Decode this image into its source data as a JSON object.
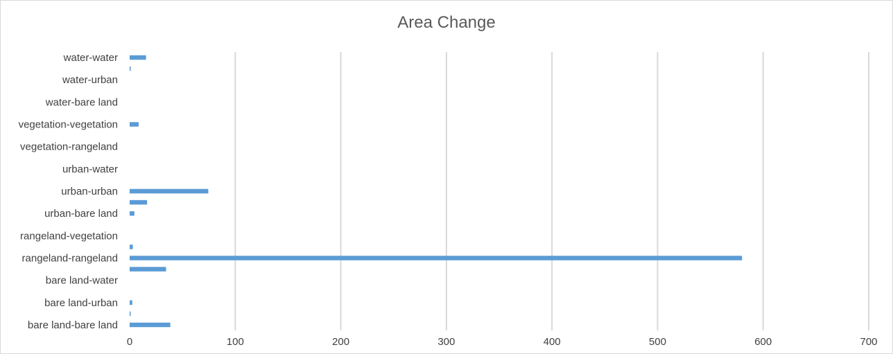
{
  "chart_data": {
    "type": "bar",
    "orientation": "horizontal",
    "title": "Area Change",
    "xlabel": "",
    "ylabel": "",
    "xlim": [
      0,
      700
    ],
    "xticks": [
      0,
      100,
      200,
      300,
      400,
      500,
      600,
      700
    ],
    "grid": "vertical",
    "legend": "none",
    "bar_color": "#5b9bd5",
    "grid_color": "#d9d9d9",
    "categories": [
      "bare land-bare land",
      "",
      "bare land-urban",
      "",
      "bare land-water",
      "",
      "rangeland-rangeland",
      "",
      "rangeland-vegetation",
      "",
      "urban-bare land",
      "",
      "urban-urban",
      "",
      "urban-water",
      "",
      "vegetation-rangeland",
      "",
      "vegetation-vegetation",
      "",
      "water-bare land",
      "",
      "water-urban",
      "",
      "water-water"
    ],
    "values": [
      38.5,
      1,
      2.5,
      0,
      0,
      34.5,
      580,
      3,
      0,
      0,
      4.5,
      16.5,
      74.5,
      0,
      0,
      0,
      0,
      0,
      8.5,
      0,
      0,
      0,
      0,
      1,
      15.5
    ]
  }
}
